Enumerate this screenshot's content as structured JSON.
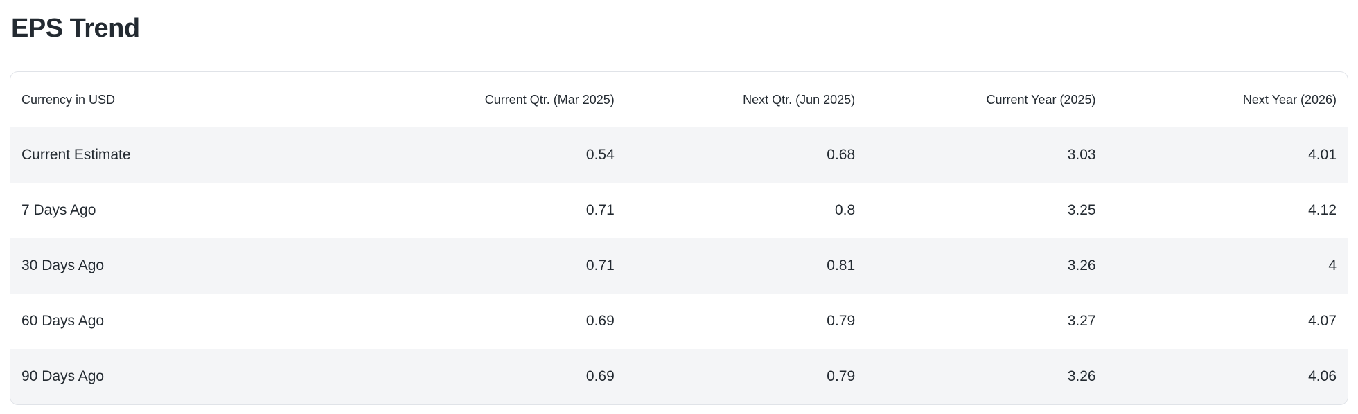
{
  "page": {
    "title": "EPS Trend"
  },
  "colors": {
    "text": "#232a31",
    "row_stripe": "#f4f5f7",
    "card_border": "#e0e3e8",
    "background": "#ffffff"
  },
  "table": {
    "columns": [
      "Currency in USD",
      "Current Qtr. (Mar 2025)",
      "Next Qtr. (Jun 2025)",
      "Current Year (2025)",
      "Next Year (2026)"
    ],
    "rows": [
      {
        "label": "Current Estimate",
        "values": [
          "0.54",
          "0.68",
          "3.03",
          "4.01"
        ]
      },
      {
        "label": "7 Days Ago",
        "values": [
          "0.71",
          "0.8",
          "3.25",
          "4.12"
        ]
      },
      {
        "label": "30 Days Ago",
        "values": [
          "0.71",
          "0.81",
          "3.26",
          "4"
        ]
      },
      {
        "label": "60 Days Ago",
        "values": [
          "0.69",
          "0.79",
          "3.27",
          "4.07"
        ]
      },
      {
        "label": "90 Days Ago",
        "values": [
          "0.69",
          "0.79",
          "3.26",
          "4.06"
        ]
      }
    ]
  }
}
